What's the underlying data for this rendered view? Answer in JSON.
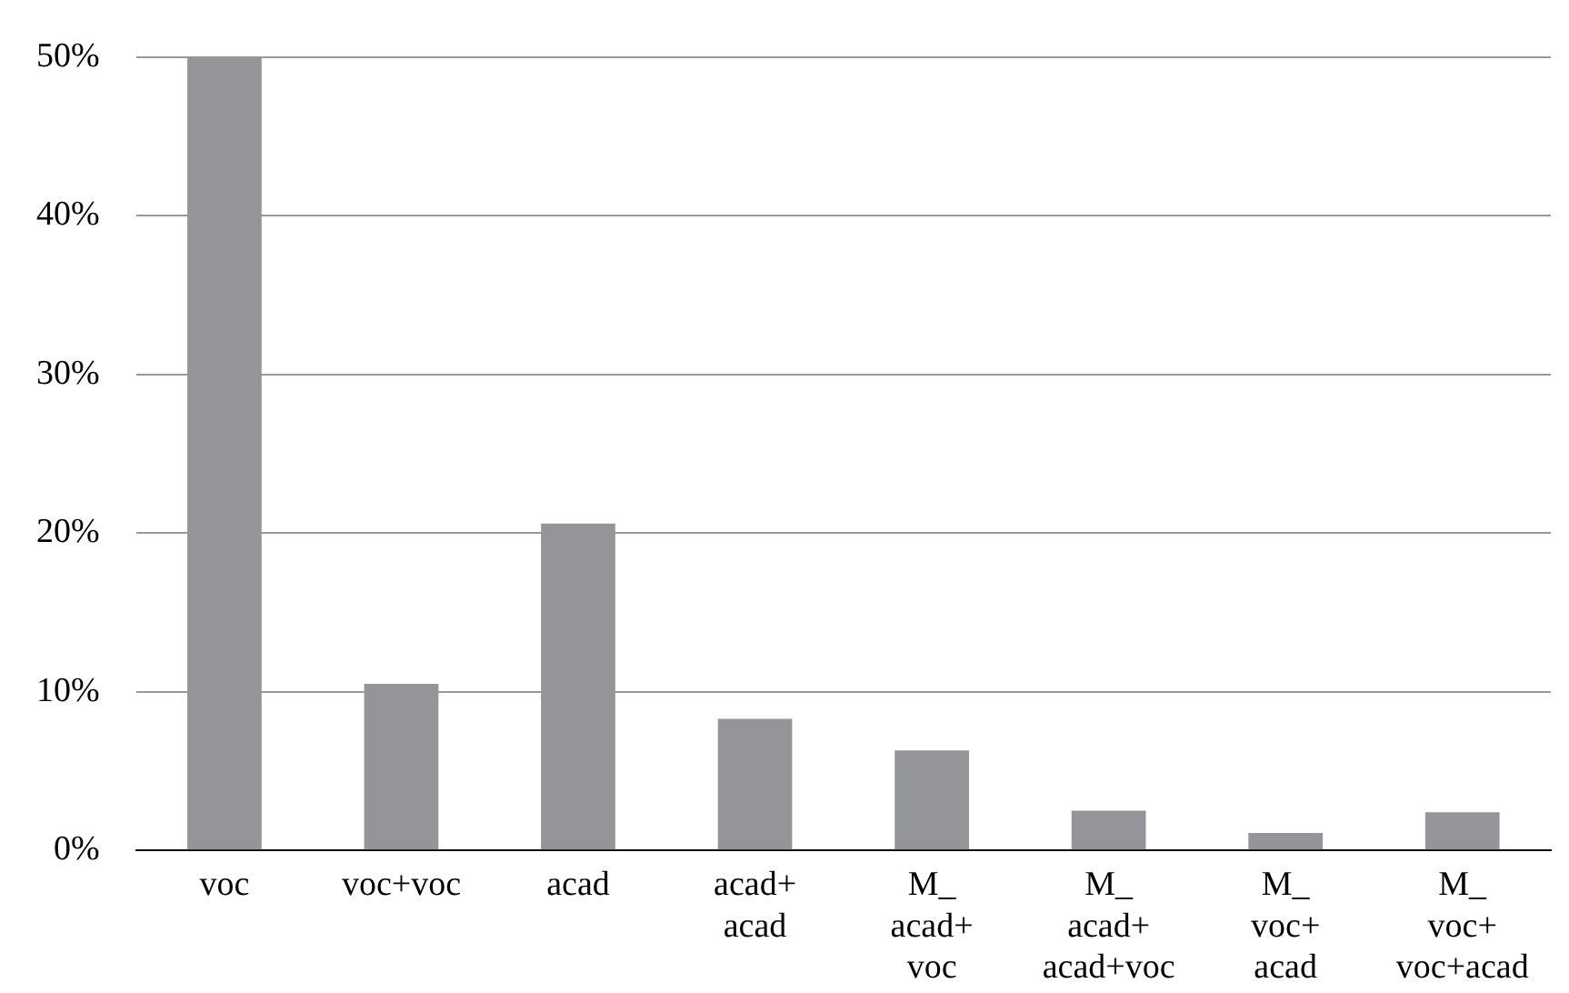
{
  "chart_data": {
    "type": "bar",
    "categories": [
      "voc",
      "voc+voc",
      "acad",
      "acad+\nacad",
      "M_\nacad+\nvoc",
      "M_\nacad+\nacad+voc",
      "M_\nvoc+\nacad",
      "M_\nvoc+\nvoc+acad"
    ],
    "values": [
      50,
      10.5,
      20.6,
      8.3,
      6.3,
      2.5,
      1.1,
      2.4
    ],
    "color": "#939598",
    "ylim": [
      0,
      50
    ],
    "yticks": [
      {
        "value": 0,
        "label": "0%"
      },
      {
        "value": 10,
        "label": "10%"
      },
      {
        "value": 20,
        "label": "20%"
      },
      {
        "value": 30,
        "label": "30%"
      },
      {
        "value": 40,
        "label": "40%"
      },
      {
        "value": 50,
        "label": "50%"
      }
    ],
    "grid": "y",
    "legend": false
  }
}
